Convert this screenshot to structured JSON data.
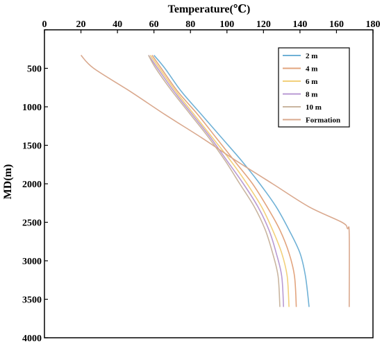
{
  "chart_data": {
    "type": "line",
    "title": "",
    "xlabel": "Temperature(℃)",
    "ylabel": "MD(m)",
    "x_axis_position": "top",
    "y_axis_inverted": true,
    "xlim": [
      0,
      180
    ],
    "ylim": [
      4000,
      0
    ],
    "x_ticks": [
      0,
      20,
      40,
      60,
      80,
      100,
      120,
      140,
      160,
      180
    ],
    "y_ticks": [
      0,
      500,
      1000,
      1500,
      2000,
      2500,
      3000,
      3500,
      4000
    ],
    "x_tick_labels": [
      "0",
      "20",
      "40",
      "60",
      "80",
      "100",
      "120",
      "140",
      "160",
      "180"
    ],
    "y_tick_labels": [
      "",
      "500",
      "1000",
      "1500",
      "2000",
      "2500",
      "3000",
      "3500",
      "4000"
    ],
    "grid": false,
    "legend_position": "top-right",
    "series": [
      {
        "name": "2 m",
        "color": "#6fb1d6",
        "points": [
          [
            60,
            330
          ],
          [
            66,
            500
          ],
          [
            75,
            800
          ],
          [
            86,
            1100
          ],
          [
            97,
            1400
          ],
          [
            108,
            1700
          ],
          [
            118,
            2000
          ],
          [
            127,
            2300
          ],
          [
            134,
            2600
          ],
          [
            140,
            2900
          ],
          [
            143,
            3200
          ],
          [
            145,
            3600
          ]
        ]
      },
      {
        "name": "4 m",
        "color": "#e2a47e",
        "points": [
          [
            59,
            330
          ],
          [
            64,
            500
          ],
          [
            73,
            800
          ],
          [
            84,
            1100
          ],
          [
            94,
            1400
          ],
          [
            104,
            1700
          ],
          [
            114,
            2000
          ],
          [
            122,
            2300
          ],
          [
            129,
            2600
          ],
          [
            134,
            2900
          ],
          [
            137,
            3200
          ],
          [
            138,
            3600
          ]
        ]
      },
      {
        "name": "6 m",
        "color": "#f2d07a",
        "points": [
          [
            58,
            330
          ],
          [
            63,
            500
          ],
          [
            72,
            800
          ],
          [
            82,
            1100
          ],
          [
            92,
            1400
          ],
          [
            102,
            1700
          ],
          [
            111,
            2000
          ],
          [
            119,
            2300
          ],
          [
            125,
            2600
          ],
          [
            130,
            2900
          ],
          [
            133,
            3200
          ],
          [
            134,
            3600
          ]
        ]
      },
      {
        "name": "8 m",
        "color": "#b89ad3",
        "points": [
          [
            57,
            330
          ],
          [
            62,
            500
          ],
          [
            71,
            800
          ],
          [
            81,
            1100
          ],
          [
            91,
            1400
          ],
          [
            100,
            1700
          ],
          [
            109,
            2000
          ],
          [
            117,
            2300
          ],
          [
            123,
            2600
          ],
          [
            127,
            2900
          ],
          [
            130,
            3200
          ],
          [
            131,
            3600
          ]
        ]
      },
      {
        "name": "10 m",
        "color": "#c9b59f",
        "points": [
          [
            57,
            330
          ],
          [
            61,
            500
          ],
          [
            70,
            800
          ],
          [
            80,
            1100
          ],
          [
            90,
            1400
          ],
          [
            99,
            1700
          ],
          [
            107,
            2000
          ],
          [
            115,
            2300
          ],
          [
            121,
            2600
          ],
          [
            125,
            2900
          ],
          [
            128,
            3200
          ],
          [
            129,
            3600
          ]
        ]
      },
      {
        "name": "Formation",
        "color": "#d9a88d",
        "points": [
          [
            20,
            330
          ],
          [
            27,
            500
          ],
          [
            47,
            800
          ],
          [
            66,
            1100
          ],
          [
            86,
            1400
          ],
          [
            105,
            1700
          ],
          [
            125,
            2000
          ],
          [
            145,
            2300
          ],
          [
            163,
            2500
          ],
          [
            166,
            2580
          ],
          [
            167,
            2650
          ],
          [
            167,
            3600
          ]
        ]
      }
    ]
  }
}
